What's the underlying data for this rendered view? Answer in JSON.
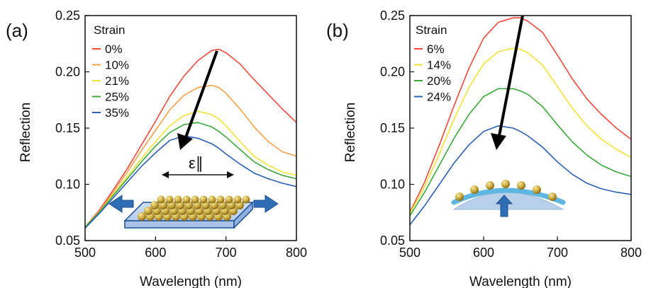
{
  "chart_data": [
    {
      "panel": "(a)",
      "type": "line",
      "xlabel": "Wavelength (nm)",
      "ylabel": "Reflection",
      "xlim": [
        500,
        800
      ],
      "ylim": [
        0.05,
        0.25
      ],
      "xticks": [
        500,
        600,
        700,
        800
      ],
      "yticks": [
        0.05,
        0.1,
        0.15,
        0.2,
        0.25
      ],
      "grid": false,
      "legend_title": "Strain",
      "legend_position": "top-left",
      "x": [
        500,
        520,
        540,
        560,
        580,
        600,
        620,
        640,
        660,
        680,
        690,
        700,
        720,
        740,
        760,
        780,
        800
      ],
      "series": [
        {
          "name": "0%",
          "color": "#f04a3c",
          "values": [
            0.062,
            0.077,
            0.095,
            0.114,
            0.135,
            0.156,
            0.178,
            0.196,
            0.21,
            0.219,
            0.22,
            0.217,
            0.207,
            0.193,
            0.18,
            0.167,
            0.155
          ]
        },
        {
          "name": "10%",
          "color": "#f7a24a",
          "values": [
            0.062,
            0.076,
            0.093,
            0.111,
            0.13,
            0.148,
            0.166,
            0.179,
            0.186,
            0.188,
            0.186,
            0.181,
            0.167,
            0.151,
            0.138,
            0.129,
            0.125
          ]
        },
        {
          "name": "21%",
          "color": "#f3e23a",
          "values": [
            0.062,
            0.075,
            0.091,
            0.107,
            0.123,
            0.138,
            0.152,
            0.161,
            0.165,
            0.162,
            0.158,
            0.152,
            0.138,
            0.125,
            0.117,
            0.111,
            0.108
          ]
        },
        {
          "name": "25%",
          "color": "#3aa83a",
          "values": [
            0.062,
            0.075,
            0.09,
            0.105,
            0.12,
            0.134,
            0.146,
            0.153,
            0.155,
            0.151,
            0.147,
            0.142,
            0.131,
            0.12,
            0.113,
            0.108,
            0.105
          ]
        },
        {
          "name": "35%",
          "color": "#2b5fb8",
          "values": [
            0.061,
            0.074,
            0.088,
            0.102,
            0.116,
            0.128,
            0.139,
            0.143,
            0.141,
            0.136,
            0.132,
            0.127,
            0.118,
            0.11,
            0.105,
            0.101,
            0.098
          ]
        }
      ],
      "annotations": {
        "arrow": "increasing strain",
        "inset_label": "ε∥"
      }
    },
    {
      "panel": "(b)",
      "type": "line",
      "xlabel": "Wavelength (nm)",
      "ylabel": "Reflection",
      "xlim": [
        500,
        800
      ],
      "ylim": [
        0.05,
        0.25
      ],
      "xticks": [
        500,
        600,
        700,
        800
      ],
      "yticks": [
        0.05,
        0.1,
        0.15,
        0.2,
        0.25
      ],
      "grid": false,
      "legend_title": "Strain",
      "legend_position": "top-left",
      "x": [
        500,
        520,
        540,
        560,
        580,
        600,
        620,
        640,
        650,
        660,
        680,
        700,
        720,
        740,
        760,
        780,
        800
      ],
      "series": [
        {
          "name": "6%",
          "color": "#f04a3c",
          "values": [
            0.075,
            0.102,
            0.135,
            0.17,
            0.203,
            0.23,
            0.244,
            0.248,
            0.248,
            0.245,
            0.235,
            0.215,
            0.194,
            0.176,
            0.162,
            0.15,
            0.14
          ]
        },
        {
          "name": "14%",
          "color": "#f3e23a",
          "values": [
            0.074,
            0.098,
            0.127,
            0.158,
            0.186,
            0.207,
            0.218,
            0.221,
            0.22,
            0.217,
            0.206,
            0.187,
            0.168,
            0.152,
            0.14,
            0.131,
            0.124
          ]
        },
        {
          "name": "20%",
          "color": "#3aa83a",
          "values": [
            0.072,
            0.093,
            0.117,
            0.141,
            0.162,
            0.178,
            0.185,
            0.185,
            0.183,
            0.18,
            0.169,
            0.153,
            0.138,
            0.126,
            0.117,
            0.111,
            0.107
          ]
        },
        {
          "name": "24%",
          "color": "#2b5fb8",
          "values": [
            0.064,
            0.081,
            0.1,
            0.119,
            0.135,
            0.147,
            0.152,
            0.15,
            0.147,
            0.143,
            0.133,
            0.12,
            0.109,
            0.101,
            0.096,
            0.093,
            0.091
          ]
        }
      ],
      "annotations": {
        "arrow": "increasing strain"
      }
    }
  ]
}
